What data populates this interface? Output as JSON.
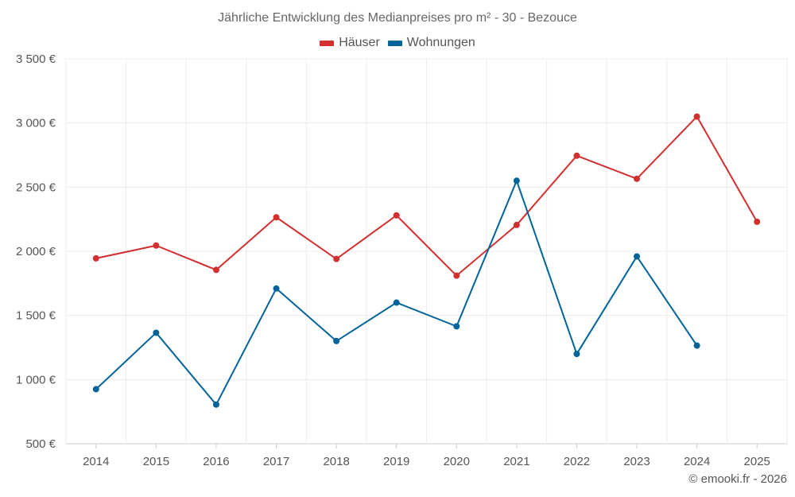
{
  "chart_data": {
    "type": "line",
    "title": "Jährliche Entwicklung des Medianpreises pro m² - 30 - Bezouce",
    "categories": [
      "2014",
      "2015",
      "2016",
      "2017",
      "2018",
      "2019",
      "2020",
      "2021",
      "2022",
      "2023",
      "2024",
      "2025"
    ],
    "y_tick_labels": [
      "500 €",
      "1 000 €",
      "1 500 €",
      "2 000 €",
      "2 500 €",
      "3 000 €",
      "3 500 €"
    ],
    "y_ticks": [
      500,
      1000,
      1500,
      2000,
      2500,
      3000,
      3500
    ],
    "ylim": [
      500,
      3500
    ],
    "grid": true,
    "legend_position": "top-center",
    "series": [
      {
        "name": "Häuser",
        "color": "#d32f2f",
        "values": [
          1945,
          2045,
          1855,
          2265,
          1940,
          2280,
          1810,
          2205,
          2745,
          2565,
          3050,
          2230
        ]
      },
      {
        "name": "Wohnungen",
        "color": "#00649a",
        "values": [
          925,
          1365,
          805,
          1710,
          1300,
          1600,
          1415,
          2550,
          1200,
          1960,
          1265,
          null
        ]
      }
    ]
  },
  "credit": "© emooki.fr - 2026"
}
